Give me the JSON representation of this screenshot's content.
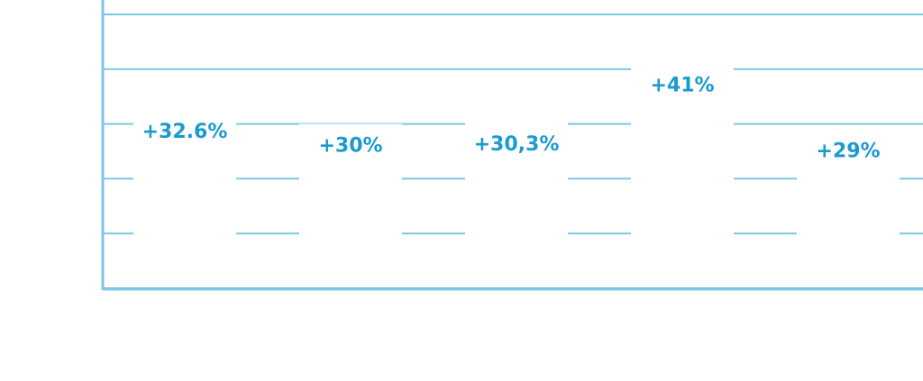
{
  "chart_data": {
    "type": "bar",
    "categories": [
      null,
      null,
      null,
      null,
      null
    ],
    "values": [
      32.6,
      30,
      30.3,
      41,
      29
    ],
    "value_labels": [
      "+32.6%",
      "+30%",
      "+30,3%",
      "+41%",
      "+29%"
    ],
    "color": "#ffffff",
    "label_color": "#1a9bd0",
    "grid_color": "#7cc7e3",
    "ylim": [
      0,
      50
    ],
    "yticks": [
      0,
      10,
      20,
      30,
      40,
      50
    ],
    "grid": true
  }
}
